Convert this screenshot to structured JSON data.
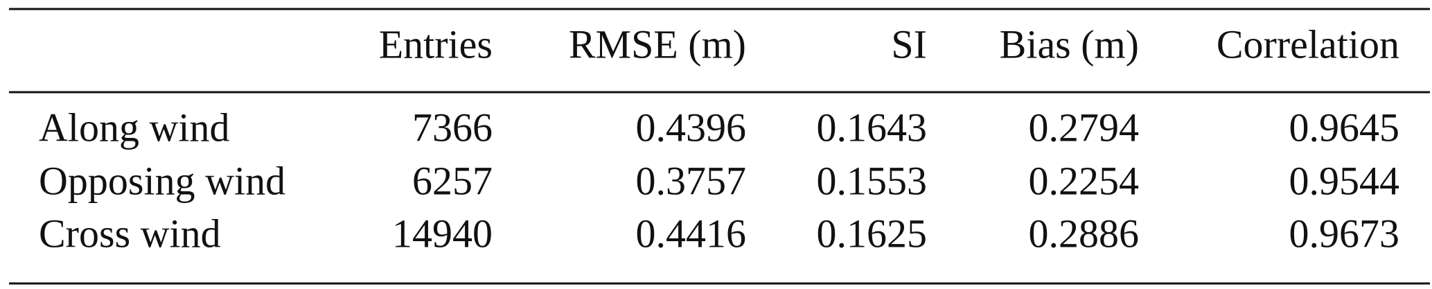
{
  "table": {
    "columns": [
      "Entries",
      "RMSE (m)",
      "SI",
      "Bias (m)",
      "Correlation"
    ],
    "rows": [
      {
        "label": "Along wind",
        "values": [
          7366,
          0.4396,
          0.1643,
          0.2794,
          0.9645
        ]
      },
      {
        "label": "Opposing wind",
        "values": [
          6257,
          0.3757,
          0.1553,
          0.2254,
          0.9544
        ]
      },
      {
        "label": "Cross wind",
        "values": [
          14940,
          0.4416,
          0.1625,
          0.2886,
          0.9673
        ]
      }
    ]
  }
}
